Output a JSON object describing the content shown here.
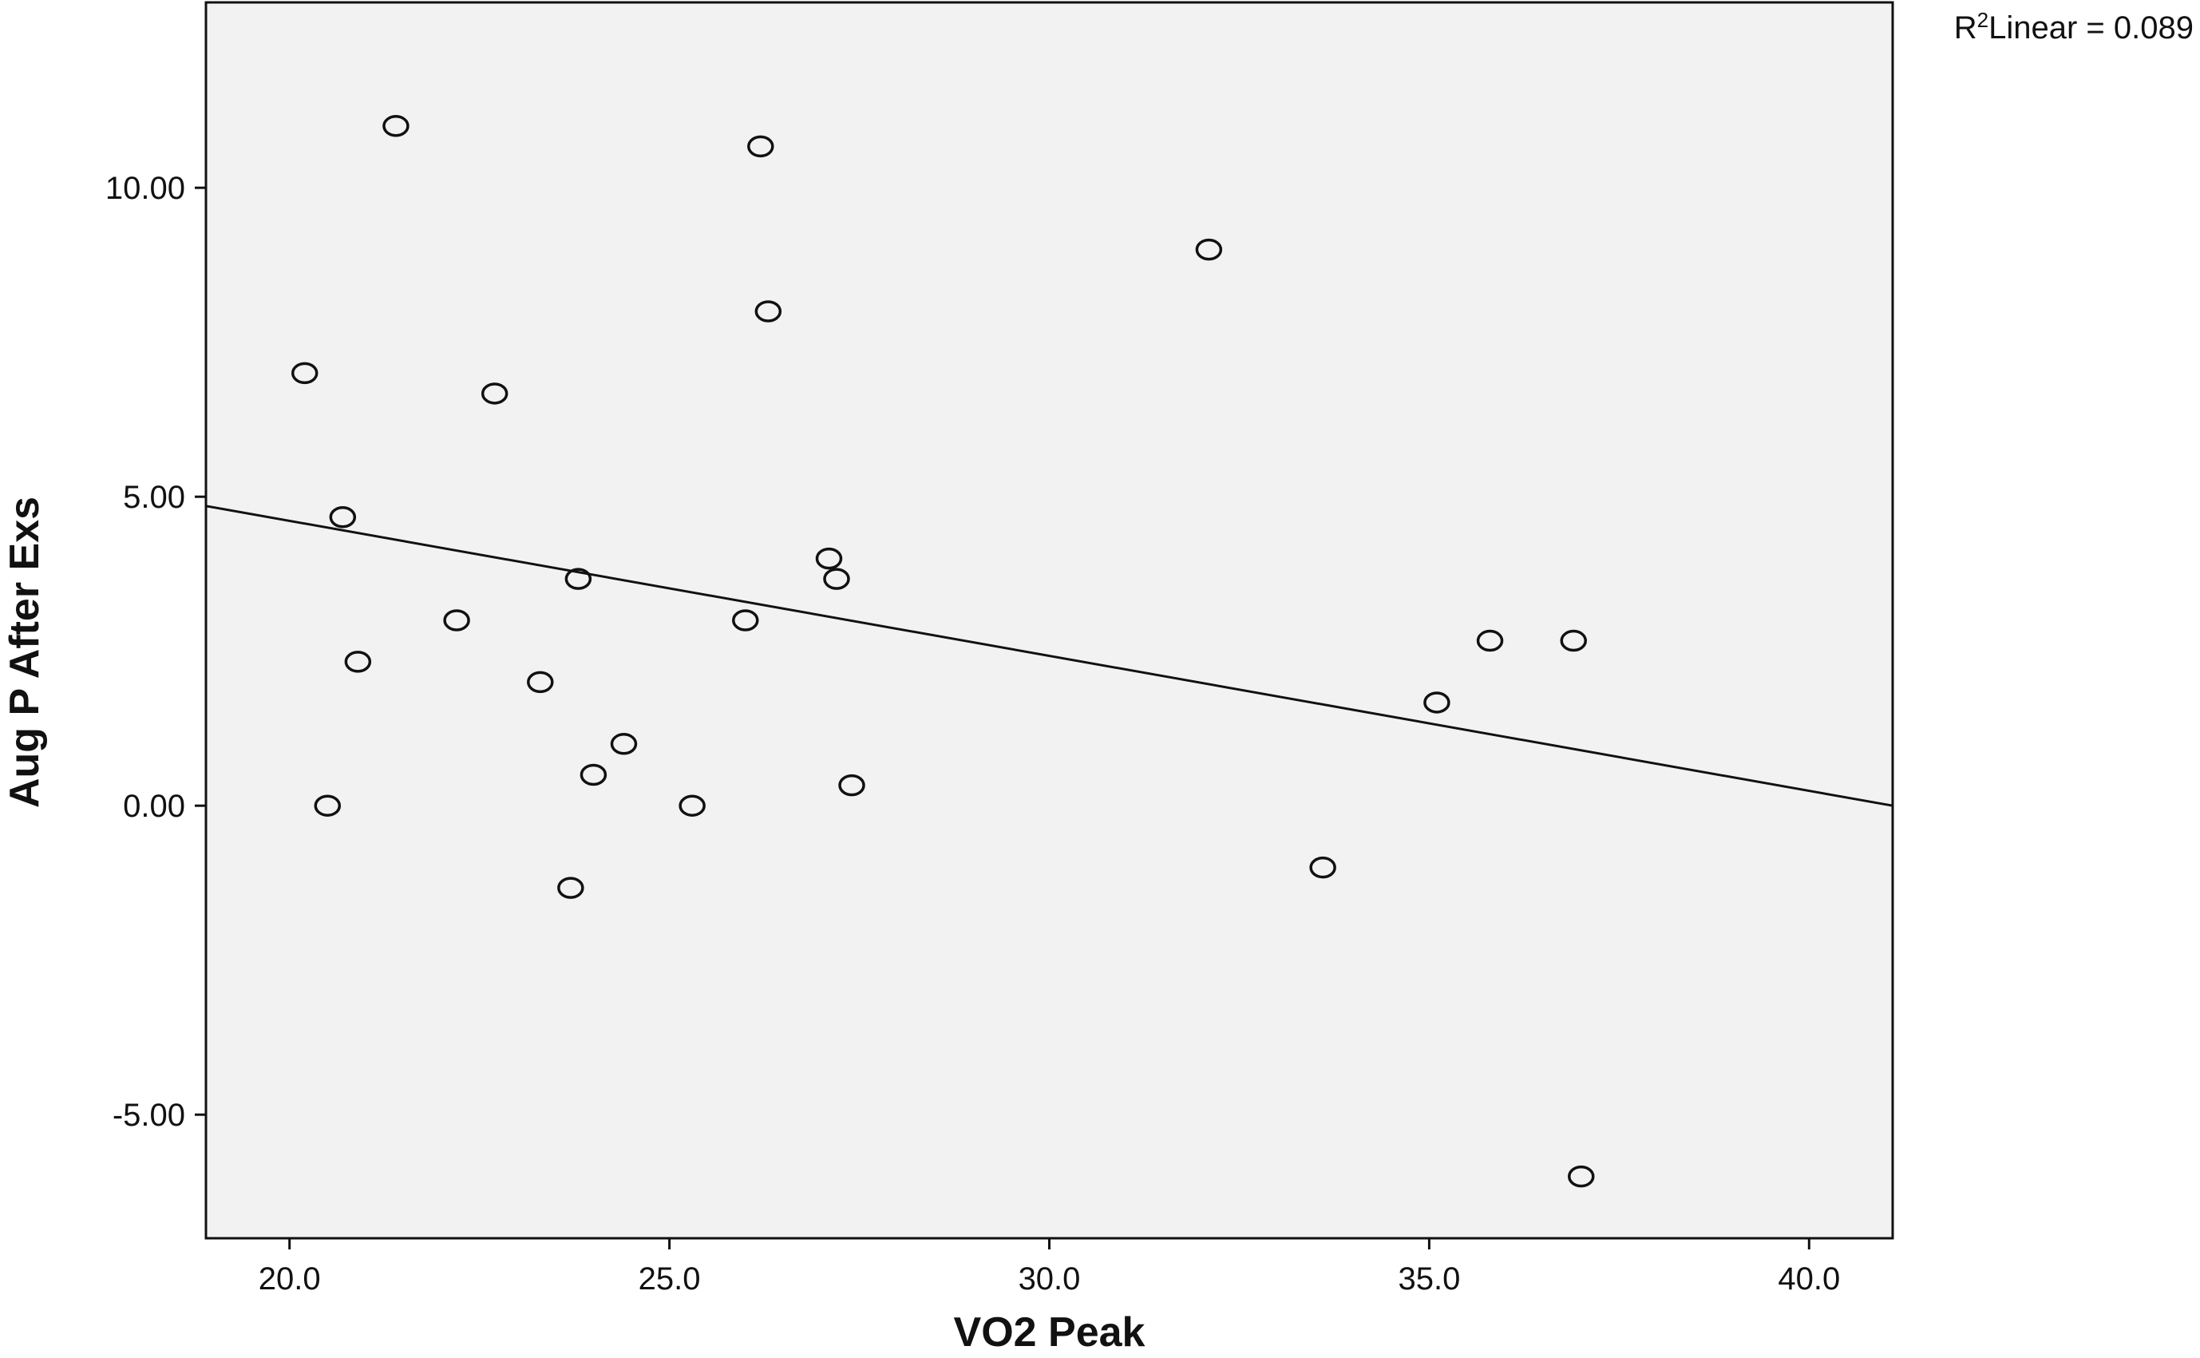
{
  "chart_data": {
    "type": "scatter",
    "title": "",
    "xlabel": "VO2 Peak",
    "ylabel": "Aug P After Exs",
    "xlim": [
      18.9,
      41.1
    ],
    "ylim": [
      -7.0,
      13.0
    ],
    "xticks": [
      20.0,
      25.0,
      30.0,
      35.0,
      40.0
    ],
    "xtick_labels": [
      "20.0",
      "25.0",
      "30.0",
      "35.0",
      "40.0"
    ],
    "yticks": [
      -5.0,
      0.0,
      5.0,
      10.0
    ],
    "ytick_labels": [
      "-5.00",
      "0.00",
      "5.00",
      "10.00"
    ],
    "grid": false,
    "background": "#f2f2f2",
    "marker": "open-circle",
    "points": [
      {
        "x": 20.2,
        "y": 7.0
      },
      {
        "x": 20.5,
        "y": 0.0
      },
      {
        "x": 20.7,
        "y": 4.67
      },
      {
        "x": 20.9,
        "y": 2.33
      },
      {
        "x": 21.4,
        "y": 11.0
      },
      {
        "x": 22.2,
        "y": 3.0
      },
      {
        "x": 22.7,
        "y": 6.67
      },
      {
        "x": 23.3,
        "y": 2.0
      },
      {
        "x": 23.7,
        "y": -1.33
      },
      {
        "x": 23.8,
        "y": 3.67
      },
      {
        "x": 24.0,
        "y": 0.5
      },
      {
        "x": 24.4,
        "y": 1.0
      },
      {
        "x": 25.3,
        "y": 0.0
      },
      {
        "x": 26.0,
        "y": 3.0
      },
      {
        "x": 26.2,
        "y": 10.67
      },
      {
        "x": 26.3,
        "y": 8.0
      },
      {
        "x": 27.1,
        "y": 4.0
      },
      {
        "x": 27.2,
        "y": 3.67
      },
      {
        "x": 27.4,
        "y": 0.33
      },
      {
        "x": 32.1,
        "y": 9.0
      },
      {
        "x": 33.6,
        "y": -1.0
      },
      {
        "x": 35.1,
        "y": 1.67
      },
      {
        "x": 35.8,
        "y": 2.67
      },
      {
        "x": 36.9,
        "y": 2.67
      },
      {
        "x": 37.0,
        "y": -6.0
      }
    ],
    "fit_line": {
      "type": "linear",
      "start": {
        "x": 18.9,
        "y": 4.85
      },
      "end": {
        "x": 41.1,
        "y": 0.0
      }
    },
    "annotation": {
      "r_label": "R",
      "r_superscript": "2",
      "text": "Linear = 0.089"
    }
  }
}
